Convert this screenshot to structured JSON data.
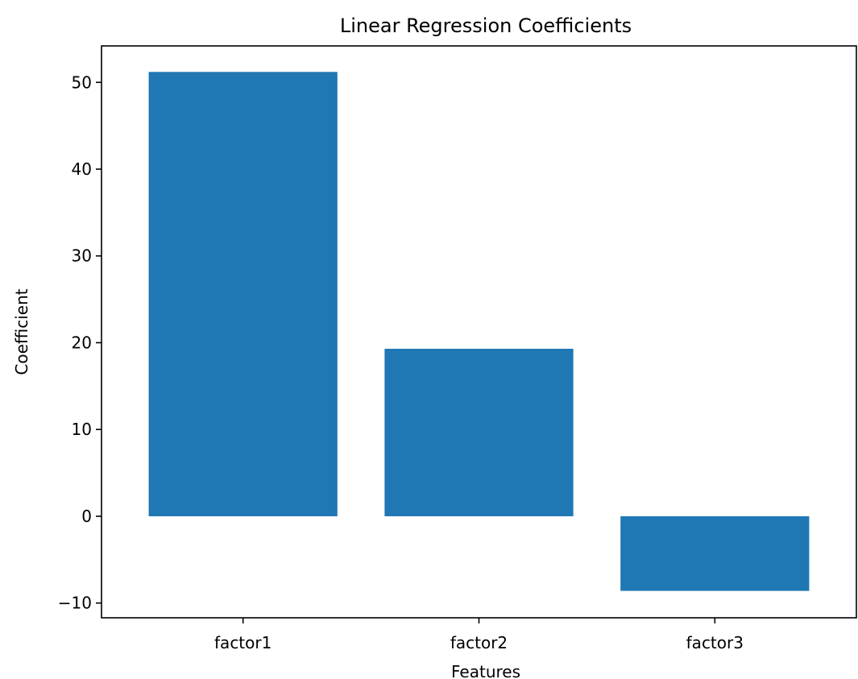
{
  "chart_data": {
    "type": "bar",
    "title": "Linear Regression Coefficients",
    "xlabel": "Features",
    "ylabel": "Coefficient",
    "categories": [
      "factor1",
      "factor2",
      "factor3"
    ],
    "values": [
      51.2,
      19.3,
      -8.6
    ],
    "ylim": [
      -11.7,
      54.2
    ],
    "yticks": [
      -10,
      0,
      10,
      20,
      30,
      40,
      50
    ],
    "ytick_labels": [
      "−10",
      "0",
      "10",
      "20",
      "30",
      "40",
      "50"
    ],
    "bar_color": "#1f77b4",
    "grid": false,
    "legend": false
  }
}
